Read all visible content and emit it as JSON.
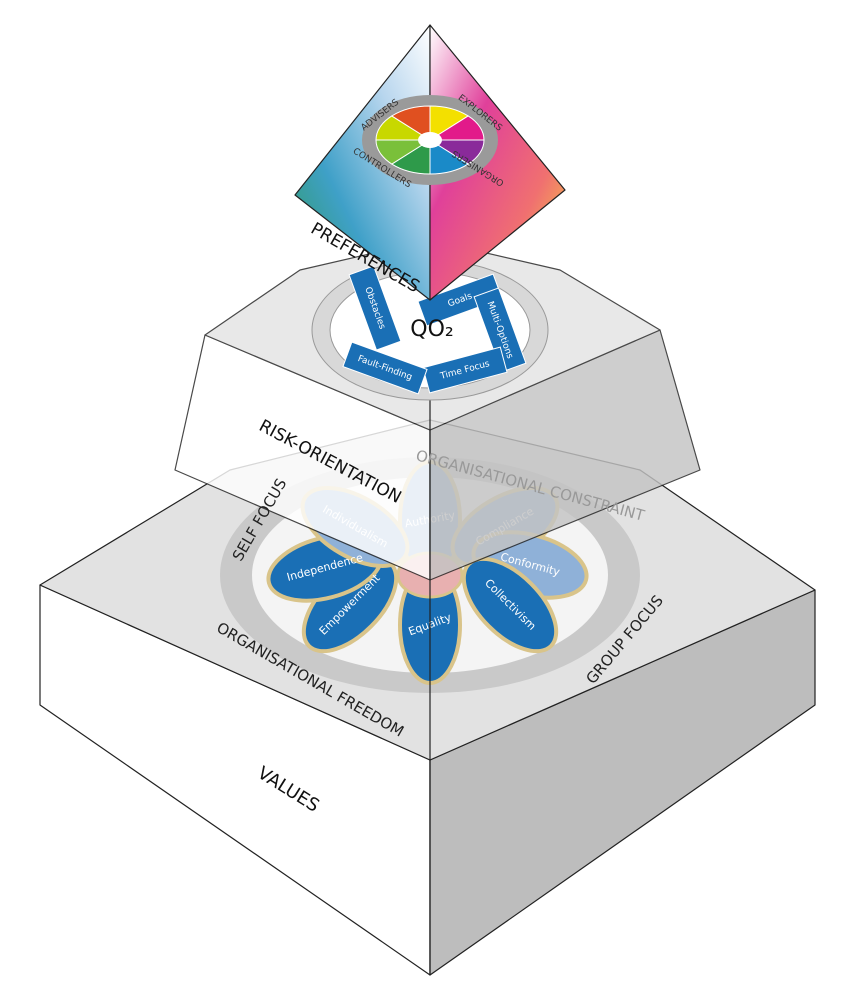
{
  "preferences": {
    "label": "PREFERENCES",
    "ring": [
      "ADVISERS",
      "EXPLORERS",
      "ORGANISERS",
      "CONTROLLERS"
    ]
  },
  "risk": {
    "label": "RISK-ORIENTATION",
    "center": "QO₂",
    "segments": [
      "Goals",
      "Multi-Options",
      "Time Focus",
      "Fault-Finding",
      "Obstacles"
    ]
  },
  "values": {
    "label": "VALUES",
    "ring": [
      "ORGANISATIONAL CONSTRAINT",
      "GROUP FOCUS",
      "ORGANISATIONAL FREEDOM",
      "SELF FOCUS"
    ],
    "petals": [
      "Authority",
      "Compliance",
      "Conformity",
      "Collectivism",
      "Equality",
      "Empowerment",
      "Independence",
      "Individualism"
    ]
  }
}
